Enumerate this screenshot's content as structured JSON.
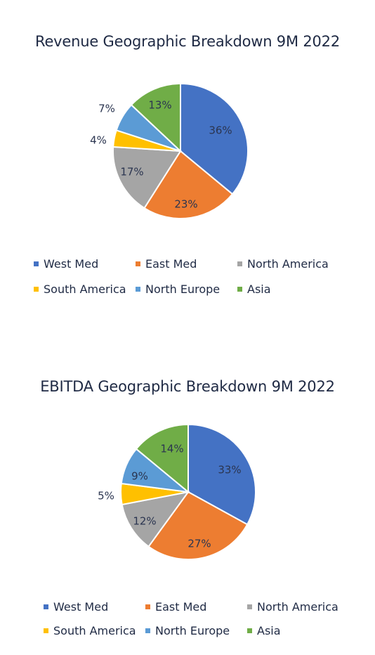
{
  "chart_data": [
    {
      "type": "pie",
      "title": "Revenue Geographic Breakdown 9M 2022",
      "categories": [
        "West Med",
        "East Med",
        "North America",
        "South America",
        "North Europe",
        "Asia"
      ],
      "values": [
        36,
        23,
        17,
        4,
        7,
        13
      ],
      "labels": [
        "36%",
        "23%",
        "17%",
        "4%",
        "7%",
        "13%"
      ],
      "colors": [
        "#4472c4",
        "#ed7d31",
        "#a5a5a5",
        "#ffc000",
        "#5b9bd5",
        "#70ad47"
      ],
      "legend_position": "bottom"
    },
    {
      "type": "pie",
      "title": "EBITDA Geographic Breakdown 9M 2022",
      "categories": [
        "West Med",
        "East Med",
        "North America",
        "South America",
        "North Europe",
        "Asia"
      ],
      "values": [
        33,
        27,
        12,
        5,
        9,
        14
      ],
      "labels": [
        "33%",
        "27%",
        "12%",
        "5%",
        "9%",
        "14%"
      ],
      "colors": [
        "#4472c4",
        "#ed7d31",
        "#a5a5a5",
        "#ffc000",
        "#5b9bd5",
        "#70ad47"
      ],
      "legend_position": "bottom"
    }
  ]
}
